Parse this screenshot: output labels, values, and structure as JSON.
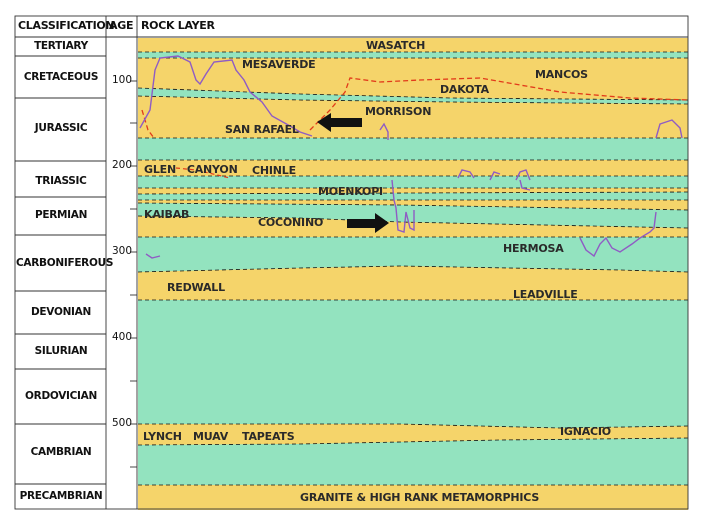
{
  "headers": {
    "classification": "CLASSIFICATION",
    "age": "AGE",
    "rock_layer": "ROCK LAYER"
  },
  "classifications": [
    {
      "name": "TERTIARY"
    },
    {
      "name": "CRETACEOUS"
    },
    {
      "name": "JURASSIC"
    },
    {
      "name": "TRIASSIC"
    },
    {
      "name": "PERMIAN"
    },
    {
      "name": "CARBONIFEROUS"
    },
    {
      "name": "DEVONIAN"
    },
    {
      "name": "SILURIAN"
    },
    {
      "name": "ORDOVICIAN"
    },
    {
      "name": "CAMBRIAN"
    },
    {
      "name": "PRECAMBRIAN"
    }
  ],
  "age_ticks": [
    "100",
    "200",
    "300",
    "400",
    "500"
  ],
  "layers": {
    "wasatch": "WASATCH",
    "mesaverde": "MESAVERDE",
    "mancos": "MANCOS",
    "dakota": "DAKOTA",
    "morrison": "MORRISON",
    "san_rafael": "SAN RAFAEL",
    "glen_canyon": "GLEN   CANYON",
    "chinle": "CHINLE",
    "moenkopi": "MOENKOPI",
    "kaibab": "KAIBAB",
    "coconino": "COCONINO",
    "hermosa": "HERMOSA",
    "redwall": "REDWALL",
    "leadville": "LEADVILLE",
    "lynch": "LYNCH",
    "muav": "MUAV",
    "tapeats": "TAPEATS",
    "ignacio": "IGNACIO",
    "granite": "GRANITE & HIGH RANK METAMORPHICS"
  },
  "colors": {
    "sandstone": "#f5d46a",
    "limestone": "#93e3bf",
    "line": "#111111",
    "red_dash": "#e23a1a",
    "purple": "#8f5cc4"
  }
}
